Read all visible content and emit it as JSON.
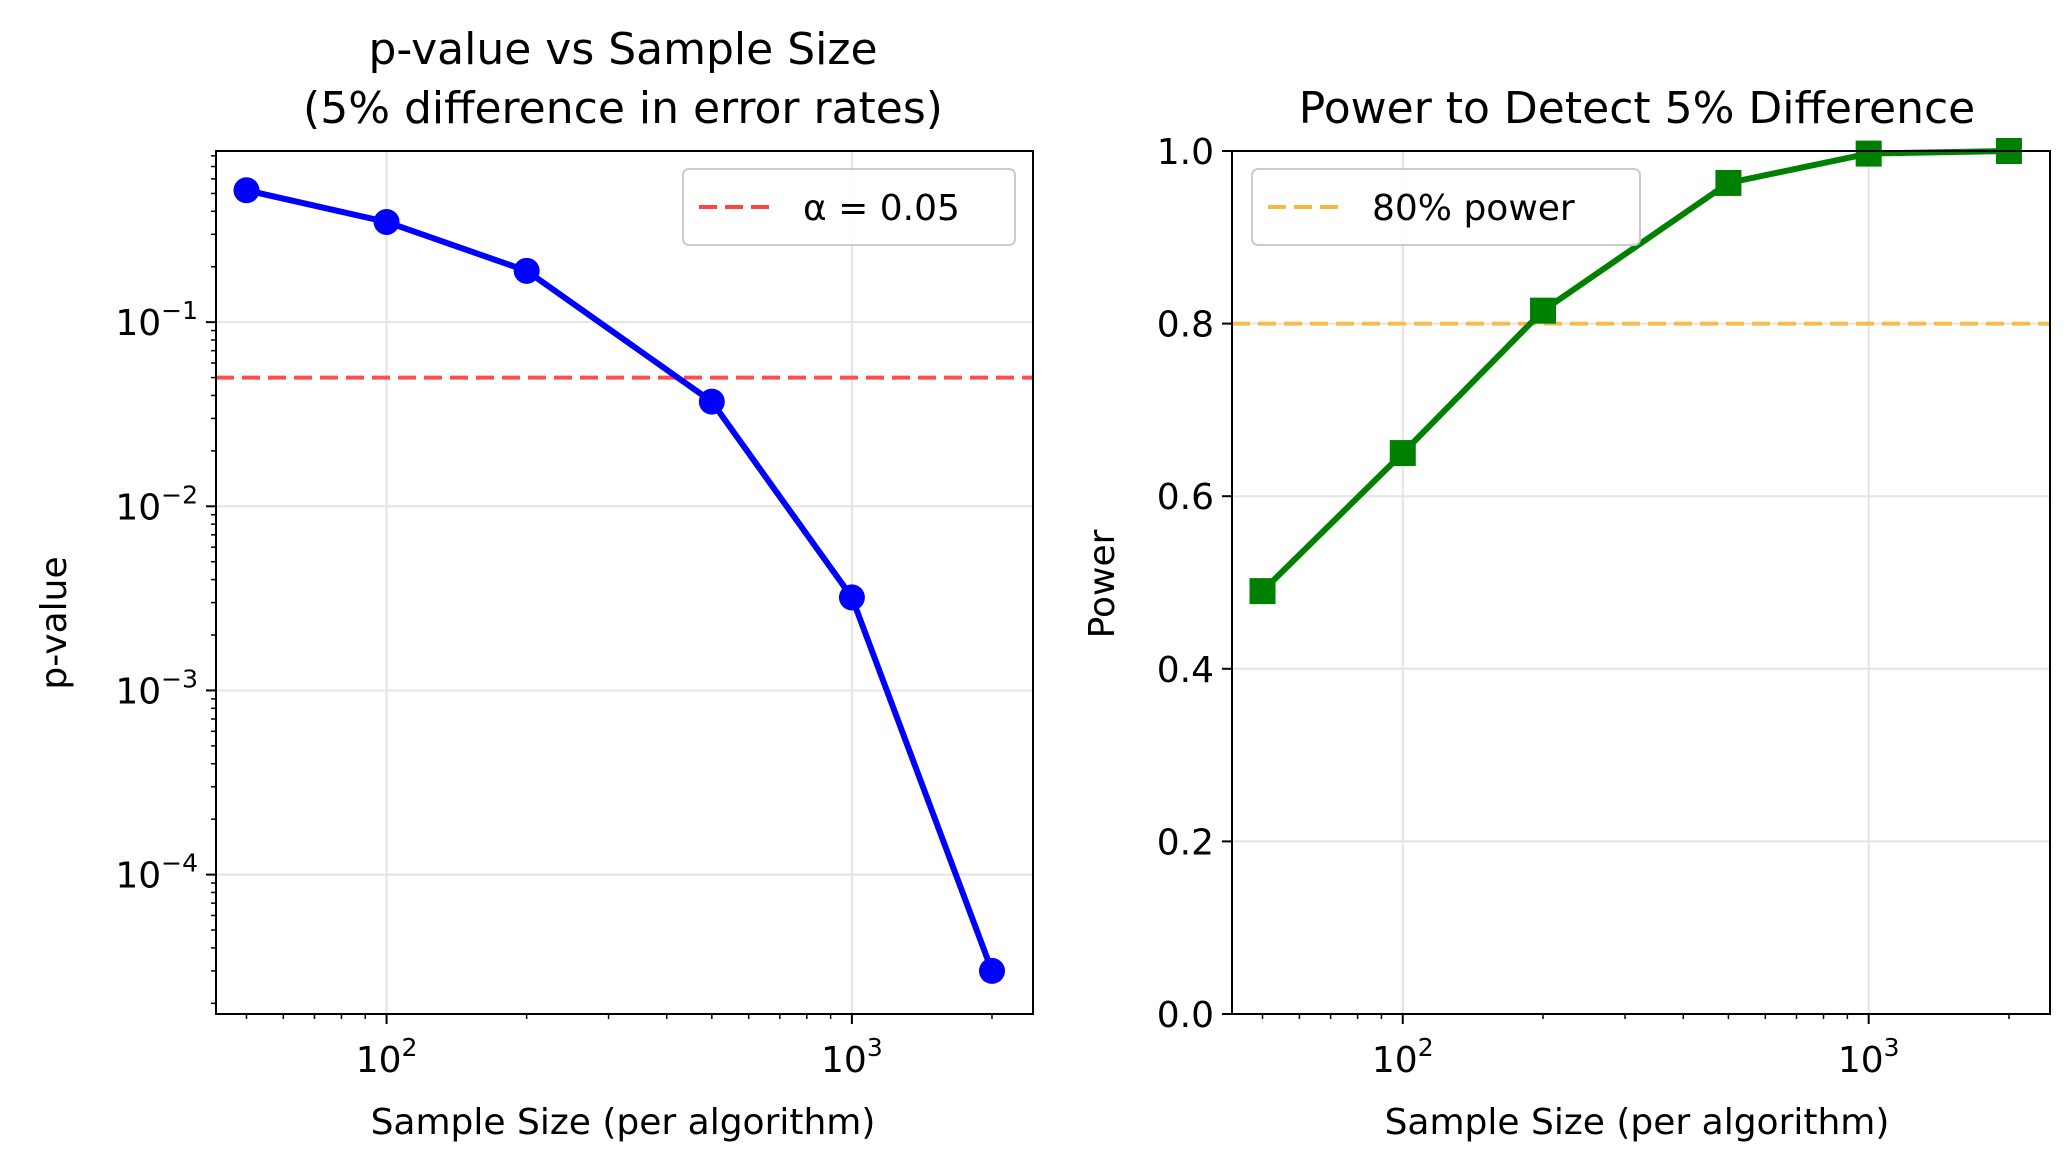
{
  "chart_data": [
    {
      "type": "line",
      "title_line1": "p-value vs Sample Size",
      "title_line2": "(5% difference in error rates)",
      "xlabel": "Sample Size (per algorithm)",
      "ylabel": "p-value",
      "xscale": "log",
      "yscale": "log",
      "xlim": [
        43,
        2450
      ],
      "ylim": [
        1.75e-05,
        0.85
      ],
      "x": [
        50,
        100,
        200,
        500,
        1000,
        2000
      ],
      "series": [
        {
          "values": [
            0.52,
            0.35,
            0.19,
            0.037,
            0.0032,
            3e-05
          ],
          "color": "#0000ff",
          "marker": "circle"
        }
      ],
      "reference_line": {
        "y": 0.05,
        "label": "α = 0.05",
        "color": "#ff4444",
        "style": "dashed"
      },
      "xticks": [
        {
          "value": 100,
          "base": "10",
          "exp": "2"
        },
        {
          "value": 1000,
          "base": "10",
          "exp": "3"
        }
      ],
      "yticks": [
        {
          "value": 0.1,
          "base": "10",
          "exp": "−1"
        },
        {
          "value": 0.01,
          "base": "10",
          "exp": "−2"
        },
        {
          "value": 0.001,
          "base": "10",
          "exp": "−3"
        },
        {
          "value": 0.0001,
          "base": "10",
          "exp": "−4"
        }
      ],
      "grid": true,
      "legend_position": "top-right"
    },
    {
      "type": "line",
      "title_line1": "Power to Detect 5% Difference",
      "xlabel": "Sample Size (per algorithm)",
      "ylabel": "Power",
      "xscale": "log",
      "yscale": "linear",
      "xlim": [
        43,
        2450
      ],
      "ylim": [
        0,
        1.0
      ],
      "x": [
        50,
        100,
        200,
        500,
        1000,
        2000
      ],
      "series": [
        {
          "values": [
            0.49,
            0.65,
            0.815,
            0.963,
            0.997,
            1.0
          ],
          "color": "#008000",
          "marker": "square"
        }
      ],
      "reference_line": {
        "y": 0.8,
        "label": "80% power",
        "color": "#f5b942",
        "style": "dashed"
      },
      "xticks": [
        {
          "value": 100,
          "base": "10",
          "exp": "2"
        },
        {
          "value": 1000,
          "base": "10",
          "exp": "3"
        }
      ],
      "yticks": [
        {
          "value": 0.0,
          "label": "0.0"
        },
        {
          "value": 0.2,
          "label": "0.2"
        },
        {
          "value": 0.4,
          "label": "0.4"
        },
        {
          "value": 0.6,
          "label": "0.6"
        },
        {
          "value": 0.8,
          "label": "0.8"
        },
        {
          "value": 1.0,
          "label": "1.0"
        }
      ],
      "grid": true,
      "legend_position": "top-left"
    }
  ]
}
